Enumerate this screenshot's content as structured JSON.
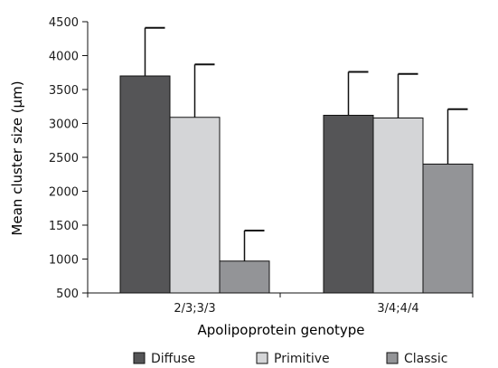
{
  "chart_data": {
    "type": "bar",
    "xlabel": "Apolipoprotein genotype",
    "ylabel": "Mean cluster size (μm)",
    "ylim": [
      500,
      4500
    ],
    "yticks": [
      500,
      1000,
      1500,
      2000,
      2500,
      3000,
      3500,
      4000,
      4500
    ],
    "categories": [
      "2/3;3/3",
      "3/4;4/4"
    ],
    "series": [
      {
        "name": "Diffuse",
        "color": "#555557",
        "values": [
          3700,
          3120
        ],
        "errors": [
          710,
          640
        ]
      },
      {
        "name": "Primitive",
        "color": "#d4d5d7",
        "values": [
          3090,
          3080
        ],
        "errors": [
          780,
          650
        ]
      },
      {
        "name": "Classic",
        "color": "#939497",
        "values": [
          970,
          2400
        ],
        "errors": [
          450,
          810
        ]
      }
    ],
    "grid": false,
    "legend_position": "bottom"
  }
}
